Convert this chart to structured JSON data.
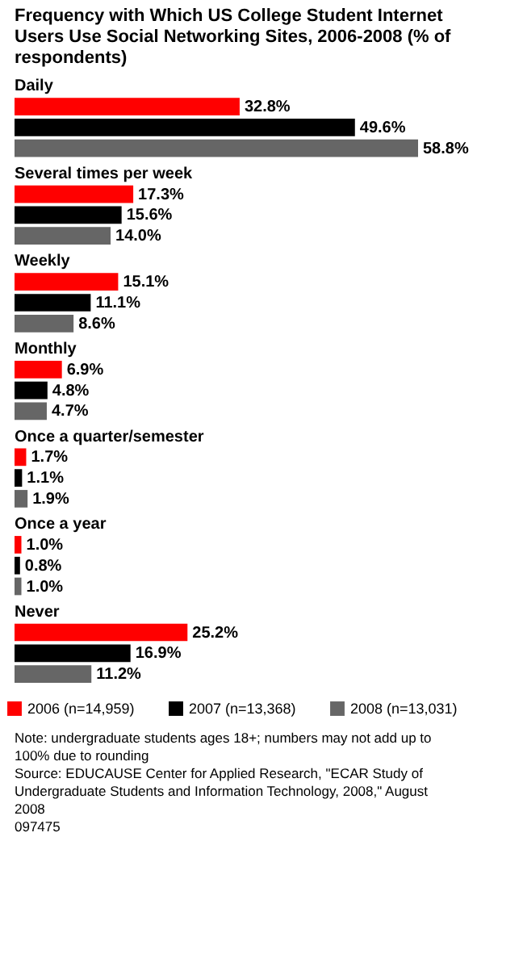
{
  "chart_data": {
    "type": "bar",
    "orientation": "horizontal",
    "title": "Frequency with Which US College Student Internet Users Use Social Networking Sites, 2006-2008 (% of respondents)",
    "categories": [
      "Daily",
      "Several times per week",
      "Weekly",
      "Monthly",
      "Once a quarter/semester",
      "Once a year",
      "Never"
    ],
    "series": [
      {
        "name": "2006 (n=14,959)",
        "color": "#ff0000",
        "values": [
          32.8,
          17.3,
          15.1,
          6.9,
          1.7,
          1.0,
          25.2
        ],
        "value_labels": [
          "32.8%",
          "17.3%",
          "15.1%",
          "6.9%",
          "1.7%",
          "1.0%",
          "25.2%"
        ]
      },
      {
        "name": "2007 (n=13,368)",
        "color": "#000000",
        "values": [
          49.6,
          15.6,
          11.1,
          4.8,
          1.1,
          0.8,
          16.9
        ],
        "value_labels": [
          "49.6%",
          "15.6%",
          "11.1%",
          "4.8%",
          "1.1%",
          "0.8%",
          "16.9%"
        ]
      },
      {
        "name": "2008 (n=13,031)",
        "color": "#666666",
        "values": [
          58.8,
          14.0,
          8.6,
          4.7,
          1.9,
          1.0,
          11.2
        ],
        "value_labels": [
          "58.8%",
          "14.0%",
          "8.6%",
          "4.7%",
          "1.9%",
          "1.0%",
          "11.2%"
        ]
      }
    ],
    "legend": "bottom",
    "annotations": [
      "Note: undergraduate students ages 18+; numbers may not add up to 100% due to rounding",
      "Source: EDUCAUSE Center for Applied Research, \"ECAR Study of Undergraduate Students and Information Technology, 2008,\" August 2008",
      "097475"
    ]
  }
}
